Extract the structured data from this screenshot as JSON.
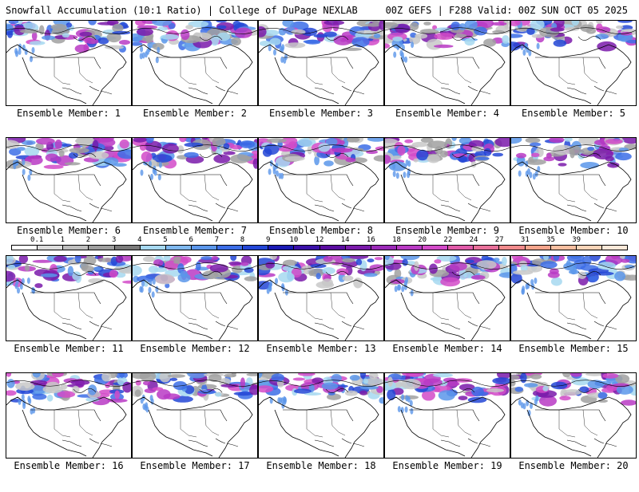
{
  "header": {
    "title": "Snowfall Accumulation (10:1 Ratio) | College of DuPage NEXLAB",
    "run_info": "00Z GEFS | F288 Valid: 00Z SUN OCT 05 2025"
  },
  "colorbar": {
    "labels": [
      "0.1",
      "1",
      "2",
      "3",
      "4",
      "5",
      "6",
      "7",
      "8",
      "9",
      "10",
      "12",
      "14",
      "16",
      "18",
      "20",
      "22",
      "24",
      "27",
      "31",
      "35",
      "39"
    ],
    "colors": [
      "#ffffff",
      "#dcdcdc",
      "#bebebe",
      "#9e9e9e",
      "#7a7a7a",
      "#a6d8f0",
      "#7fb8ee",
      "#5b96ea",
      "#3c6de6",
      "#2346d6",
      "#1a1ab4",
      "#3a10a8",
      "#5a0ca0",
      "#7a1aaa",
      "#9a2ab8",
      "#b83ac4",
      "#d24ac8",
      "#e05aa8",
      "#e8709a",
      "#f08a8c",
      "#f4a48c",
      "#f8bea0",
      "#fad4b8",
      "#fce8d8"
    ]
  },
  "members": [
    {
      "label": "Ensemble Member: 1"
    },
    {
      "label": "Ensemble Member: 2"
    },
    {
      "label": "Ensemble Member: 3"
    },
    {
      "label": "Ensemble Member: 4"
    },
    {
      "label": "Ensemble Member: 5"
    },
    {
      "label": "Ensemble Member: 6"
    },
    {
      "label": "Ensemble Member: 7"
    },
    {
      "label": "Ensemble Member: 8"
    },
    {
      "label": "Ensemble Member: 9"
    },
    {
      "label": "Ensemble Member: 10"
    },
    {
      "label": "Ensemble Member: 11"
    },
    {
      "label": "Ensemble Member: 12"
    },
    {
      "label": "Ensemble Member: 13"
    },
    {
      "label": "Ensemble Member: 14"
    },
    {
      "label": "Ensemble Member: 15"
    },
    {
      "label": "Ensemble Member: 16"
    },
    {
      "label": "Ensemble Member: 17"
    },
    {
      "label": "Ensemble Member: 18"
    },
    {
      "label": "Ensemble Member: 19"
    },
    {
      "label": "Ensemble Member: 20"
    }
  ]
}
